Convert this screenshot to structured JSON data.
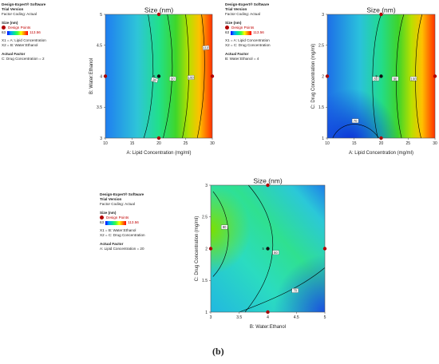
{
  "software": "Design-Expert® Software",
  "version": "Trial Version",
  "coding": "Factor Coding: Actual",
  "legend": {
    "response": "Size (nm)",
    "design_points": "Design Points",
    "low": "63",
    "high": "113.56"
  },
  "sublabel": "(b)",
  "colors": {
    "design_point": "#b30000",
    "contour": "#000000"
  },
  "panels": [
    {
      "x1_text": "X1 = A: Lipid Concentration",
      "x2_text": "X2 = B: Water:Ethanol",
      "actual_factor_title": "Actual Factor",
      "actual_factor_text": "C: Drug Concentration = 2"
    },
    {
      "x1_text": "X1 = A: Lipid Concentration",
      "x2_text": "X2 = C: Drug Concentration",
      "actual_factor_title": "Actual Factor",
      "actual_factor_text": "B: Water:Ethanol = 4"
    },
    {
      "x1_text": "X1 = B: Water:Ethanol",
      "x2_text": "X2 = C: Drug Concentration",
      "actual_factor_title": "Actual Factor",
      "actual_factor_text": "A: Lipid Concentration = 20"
    }
  ],
  "chart_data": [
    {
      "type": "contour",
      "title": "Size (nm)",
      "xlabel": "A: Lipid Concentration (mg/ml)",
      "ylabel": "B: Water:Ethanol",
      "xlim": [
        10,
        30
      ],
      "ylim": [
        3,
        5
      ],
      "xticks": [
        "10",
        "15",
        "20",
        "25",
        "30"
      ],
      "yticks": [
        "3",
        "3.5",
        "4",
        "4.5",
        "5"
      ],
      "contour_labels": [
        "80",
        "90",
        "100",
        "110"
      ],
      "design_points": [
        [
          20,
          5
        ],
        [
          10,
          4
        ],
        [
          20,
          4
        ],
        [
          30,
          4
        ],
        [
          20,
          3
        ]
      ],
      "center_point_count": "5"
    },
    {
      "type": "contour",
      "title": "Size (nm)",
      "xlabel": "A: Lipid Concentration (mg/ml)",
      "ylabel": "C: Drug Concentration (mg/ml)",
      "xlim": [
        10,
        30
      ],
      "ylim": [
        1,
        3
      ],
      "xticks": [
        "10",
        "15",
        "20",
        "25",
        "30"
      ],
      "yticks": [
        "1",
        "1.5",
        "2",
        "2.5",
        "3"
      ],
      "contour_labels": [
        "70",
        "80",
        "90",
        "100"
      ],
      "design_points": [
        [
          20,
          3
        ],
        [
          10,
          2
        ],
        [
          20,
          2
        ],
        [
          30,
          2
        ],
        [
          20,
          1
        ]
      ],
      "center_point_count": "5"
    },
    {
      "type": "contour",
      "title": "Size (nm)",
      "xlabel": "B: Water:Ethanol",
      "ylabel": "C: Drug Concentration (mg/ml)",
      "xlim": [
        3,
        5
      ],
      "ylim": [
        1,
        3
      ],
      "xticks": [
        "3",
        "3.5",
        "4",
        "4.5",
        "5"
      ],
      "yticks": [
        "1",
        "1.5",
        "2",
        "2.5",
        "3"
      ],
      "contour_labels": [
        "80",
        "80",
        "70"
      ],
      "design_points": [
        [
          4,
          3
        ],
        [
          3,
          2
        ],
        [
          4,
          2
        ],
        [
          5,
          2
        ],
        [
          4,
          1
        ]
      ],
      "center_point_count": "5"
    }
  ]
}
